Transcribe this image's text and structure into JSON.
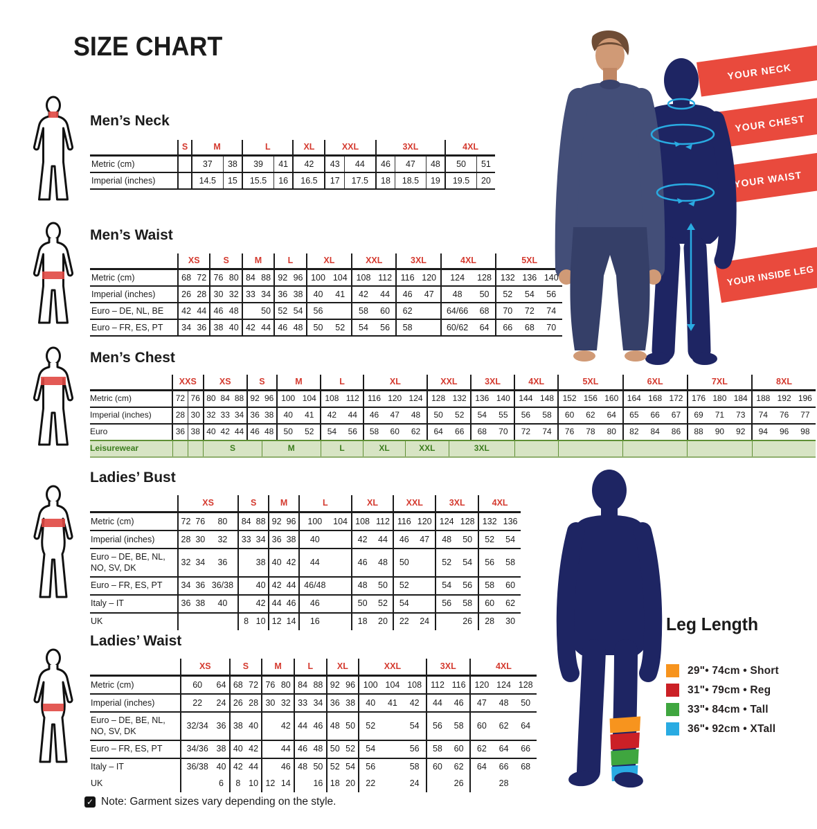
{
  "title": "SIZE CHART",
  "note": {
    "text": "Note: Garment sizes vary depending on the style.",
    "icon": "checkbox-checked"
  },
  "colors": {
    "header_red": "#d43a2f",
    "banner_red": "#e94a3d",
    "silhouette_navy": "#1e2563",
    "leisure_green_bg": "#d7e4c4",
    "leisure_green_text": "#3c7d1e",
    "measure_cyan": "#29abe2"
  },
  "scene": {
    "banners": [
      "YOUR NECK",
      "YOUR CHEST",
      "YOUR WAIST",
      "YOUR INSIDE LEG"
    ]
  },
  "leg_length": {
    "title": "Leg Length",
    "items": [
      {
        "color": "#F7941E",
        "label": "29\"• 74cm • Short"
      },
      {
        "color": "#CB2026",
        "label": "31\"• 79cm • Reg"
      },
      {
        "color": "#3FA63F",
        "label": "33\"• 84cm • Tall"
      },
      {
        "color": "#29ABE2",
        "label": "36\"• 92cm • XTall"
      }
    ]
  },
  "tables": [
    {
      "id": "t-neck",
      "title": "Men’s Neck",
      "all_dividers": true,
      "groups": [
        {
          "l": "S",
          "s": 2
        },
        {
          "l": "M",
          "s": 2
        },
        {
          "l": "L",
          "s": 2
        },
        {
          "l": "XL",
          "s": 1
        },
        {
          "l": "XXL",
          "s": 2
        },
        {
          "l": "3XL",
          "s": 3
        },
        {
          "l": "4XL",
          "s": 2
        }
      ],
      "rows": [
        {
          "label": "Metric (cm)",
          "cells": [
            [
              "",
              2
            ],
            "37",
            "38",
            "39",
            "41",
            "42",
            "43",
            "44",
            "46",
            "47",
            "48",
            "50",
            "51"
          ]
        },
        {
          "label": "Imperial (inches)",
          "cells": [
            [
              "",
              2
            ],
            "14.5",
            "15",
            "15.5",
            "16",
            "16.5",
            "17",
            "17.5",
            "18",
            "18.5",
            "19",
            "19.5",
            "20"
          ]
        }
      ]
    },
    {
      "id": "t-waist",
      "title": "Men’s Waist",
      "groups": [
        {
          "l": "XS",
          "s": 2
        },
        {
          "l": "S",
          "s": 2
        },
        {
          "l": "M",
          "s": 2
        },
        {
          "l": "L",
          "s": 2
        },
        {
          "l": "XL",
          "s": 2
        },
        {
          "l": "XXL",
          "s": 2
        },
        {
          "l": "3XL",
          "s": 2
        },
        {
          "l": "4XL",
          "s": 2
        },
        {
          "l": "5XL",
          "s": 3
        }
      ],
      "rows": [
        {
          "label": "Metric (cm)",
          "cells": [
            "68",
            "72",
            "76",
            "80",
            "84",
            "88",
            "92",
            "96",
            "100",
            "104",
            "108",
            "112",
            "116",
            "120",
            "124",
            "128",
            "132",
            "136",
            "140"
          ]
        },
        {
          "label": "Imperial (inches)",
          "cells": [
            "26",
            "28",
            "30",
            "32",
            "33",
            "34",
            "36",
            "38",
            "40",
            "41",
            "42",
            "44",
            "46",
            "47",
            "48",
            "50",
            "52",
            "54",
            "56"
          ]
        },
        {
          "label": "Euro – DE, NL, BE",
          "cells": [
            "42",
            "44",
            "46",
            "48",
            "",
            "50",
            "52",
            "54",
            "56",
            "",
            "58",
            "60",
            "62",
            "",
            "64/66",
            "68",
            "70",
            "72",
            "74"
          ]
        },
        {
          "label": "Euro – FR, ES, PT",
          "cells": [
            "34",
            "36",
            "38",
            "40",
            "42",
            "44",
            "46",
            "48",
            "50",
            "52",
            "54",
            "56",
            "58",
            "",
            "60/62",
            "64",
            "66",
            "68",
            "70"
          ]
        }
      ]
    },
    {
      "id": "t-chest",
      "title": "Men’s Chest",
      "extra_dividers": [
        1
      ],
      "groups": [
        {
          "l": "XXS",
          "s": 2
        },
        {
          "l": "XS",
          "s": 3
        },
        {
          "l": "S",
          "s": 2
        },
        {
          "l": "M",
          "s": 2
        },
        {
          "l": "L",
          "s": 2
        },
        {
          "l": "XL",
          "s": 3
        },
        {
          "l": "XXL",
          "s": 2
        },
        {
          "l": "3XL",
          "s": 2
        },
        {
          "l": "4XL",
          "s": 2
        },
        {
          "l": "5XL",
          "s": 3
        },
        {
          "l": "6XL",
          "s": 3
        },
        {
          "l": "7XL",
          "s": 3
        },
        {
          "l": "8XL",
          "s": 3
        }
      ],
      "rows": [
        {
          "label": "Metric (cm)",
          "cells": [
            "72",
            "76",
            "80",
            "84",
            "88",
            "92",
            "96",
            "100",
            "104",
            "108",
            "112",
            "116",
            "120",
            "124",
            "128",
            "132",
            "136",
            "140",
            "144",
            "148",
            "152",
            "156",
            "160",
            "164",
            "168",
            "172",
            "176",
            "180",
            "184",
            "188",
            "192",
            "196"
          ]
        },
        {
          "label": "Imperial (inches)",
          "cells": [
            "28",
            "30",
            "32",
            "33",
            "34",
            "36",
            "38",
            "40",
            "41",
            "42",
            "44",
            "46",
            "47",
            "48",
            "50",
            "52",
            "54",
            "55",
            "56",
            "58",
            "60",
            "62",
            "64",
            "65",
            "66",
            "67",
            "69",
            "71",
            "73",
            "74",
            "76",
            "77"
          ]
        },
        {
          "label": "Euro",
          "cls": "pre-leisure",
          "cells": [
            "36",
            "38",
            "40",
            "42",
            "44",
            "46",
            "48",
            "50",
            "52",
            "54",
            "56",
            "58",
            "60",
            "62",
            "64",
            "66",
            "68",
            "70",
            "72",
            "74",
            "76",
            "78",
            "80",
            "82",
            "84",
            "86",
            "88",
            "90",
            "92",
            "94",
            "96",
            "98"
          ]
        },
        {
          "label": "Leisurewear",
          "cls": "leisure",
          "cells": [
            [
              "",
              1
            ],
            [
              "",
              1
            ],
            [
              "S",
              4
            ],
            [
              "M",
              3
            ],
            [
              "L",
              2
            ],
            [
              "XL",
              2
            ],
            [
              "XXL",
              2
            ],
            [
              "3XL",
              3
            ],
            [
              "",
              2
            ],
            [
              "",
              3
            ],
            [
              "",
              3
            ],
            [
              "",
              3
            ],
            [
              "",
              3
            ]
          ]
        }
      ]
    },
    {
      "id": "t-bust",
      "title": "Ladies’ Bust",
      "groups": [
        {
          "l": "XS",
          "s": 3
        },
        {
          "l": "S",
          "s": 2
        },
        {
          "l": "M",
          "s": 2
        },
        {
          "l": "L",
          "s": 2
        },
        {
          "l": "XL",
          "s": 2
        },
        {
          "l": "XXL",
          "s": 2
        },
        {
          "l": "3XL",
          "s": 2
        },
        {
          "l": "4XL",
          "s": 2
        }
      ],
      "rows": [
        {
          "label": "Metric (cm)",
          "cells": [
            "72",
            "76",
            "80",
            "84",
            "88",
            "92",
            "96",
            "100",
            "104",
            "108",
            "112",
            "116",
            "120",
            "124",
            "128",
            "132",
            "136"
          ]
        },
        {
          "label": "Imperial (inches)",
          "cells": [
            "28",
            "30",
            "32",
            "33",
            "34",
            "36",
            "38",
            "40",
            "",
            "42",
            "44",
            "46",
            "47",
            "48",
            "50",
            "52",
            "54"
          ]
        },
        {
          "label": "Euro –  DE, BE, NL, NO, SV, DK",
          "cells": [
            "32",
            "34",
            "36",
            "",
            "38",
            "40",
            "42",
            "44",
            "",
            "46",
            "48",
            "50",
            "",
            "52",
            "54",
            "56",
            "58"
          ]
        },
        {
          "label": "Euro – FR, ES, PT",
          "cells": [
            "34",
            "36",
            "36/38",
            "",
            "40",
            "42",
            "44",
            "46/48",
            "",
            "48",
            "50",
            "52",
            "",
            "54",
            "56",
            "58",
            "60"
          ]
        },
        {
          "label": "Italy – IT",
          "cells": [
            "36",
            "38",
            "40",
            "",
            "42",
            "44",
            "46",
            "46",
            "",
            "50",
            "52",
            "54",
            "",
            "56",
            "58",
            "60",
            "62"
          ]
        },
        {
          "label": "UK",
          "cls": "nb",
          "cells": [
            "",
            "",
            "",
            "8",
            "10",
            "12",
            "14",
            "16",
            "",
            "18",
            "20",
            "22",
            "24",
            "",
            "26",
            "28",
            "30"
          ]
        }
      ]
    },
    {
      "id": "t-lwaist",
      "title": "Ladies’ Waist",
      "groups": [
        {
          "l": "XS",
          "s": 2
        },
        {
          "l": "S",
          "s": 2
        },
        {
          "l": "M",
          "s": 2
        },
        {
          "l": "L",
          "s": 2
        },
        {
          "l": "XL",
          "s": 2
        },
        {
          "l": "XXL",
          "s": 3
        },
        {
          "l": "3XL",
          "s": 2
        },
        {
          "l": "4XL",
          "s": 3
        }
      ],
      "rows": [
        {
          "label": "Metric (cm)",
          "cells": [
            "60",
            "64",
            "68",
            "72",
            "76",
            "80",
            "84",
            "88",
            "92",
            "96",
            "100",
            "104",
            "108",
            "112",
            "116",
            "120",
            "124",
            "128"
          ]
        },
        {
          "label": "Imperial (inches)",
          "cells": [
            "22",
            "24",
            "26",
            "28",
            "30",
            "32",
            "33",
            "34",
            "36",
            "38",
            "40",
            "41",
            "42",
            "44",
            "46",
            "47",
            "48",
            "50"
          ]
        },
        {
          "label": "Euro – DE, BE, NL, NO, SV, DK",
          "cells": [
            "32/34",
            "36",
            "38",
            "40",
            "",
            "42",
            "44",
            "46",
            "48",
            "50",
            "52",
            "",
            "54",
            "56",
            "58",
            "60",
            "62",
            "64"
          ]
        },
        {
          "label": "Euro – FR, ES, PT",
          "cells": [
            "34/36",
            "38",
            "40",
            "42",
            "",
            "44",
            "46",
            "48",
            "50",
            "52",
            "54",
            "",
            "56",
            "58",
            "60",
            "62",
            "64",
            "66"
          ]
        },
        {
          "label": "Italy – IT",
          "cls": "nb",
          "cells": [
            "36/38",
            "40",
            "42",
            "44",
            "",
            "46",
            "48",
            "50",
            "52",
            "54",
            "56",
            "",
            "58",
            "60",
            "62",
            "64",
            "66",
            "68"
          ]
        },
        {
          "label": "UK",
          "cls": "nb",
          "cells": [
            "",
            "6",
            "8",
            "10",
            "12",
            "14",
            "",
            "16",
            "18",
            "20",
            "22",
            "",
            "24",
            "",
            "26",
            "",
            "28",
            ""
          ]
        }
      ]
    }
  ]
}
